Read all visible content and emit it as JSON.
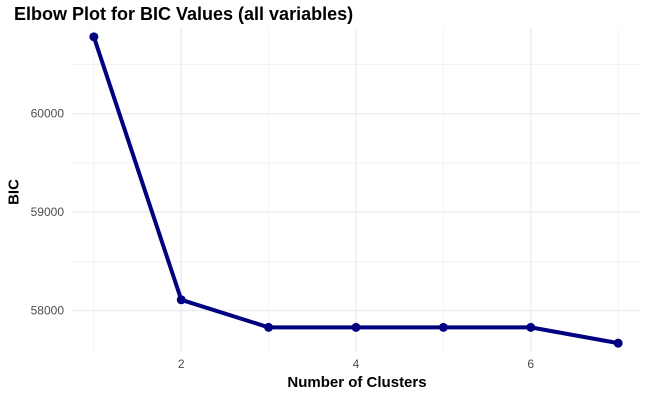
{
  "chart_data": {
    "type": "line",
    "title": "Elbow Plot for BIC Values (all variables)",
    "xlabel": "Number of Clusters",
    "ylabel": "BIC",
    "x": [
      1,
      2,
      3,
      4,
      5,
      6,
      7
    ],
    "values": [
      60780,
      58110,
      57830,
      57830,
      57830,
      57830,
      57670
    ],
    "xlim": [
      0.75,
      7.25
    ],
    "ylim": [
      57580,
      60870
    ],
    "x_ticks": [
      2,
      4,
      6
    ],
    "x_tick_labels": [
      "2",
      "4",
      "6"
    ],
    "y_ticks": [
      58000,
      59000,
      60000
    ],
    "y_tick_labels": [
      "58000",
      "59000",
      "60000"
    ],
    "grid": true,
    "line_color": "#000080",
    "grid_color": "#ebebeb"
  }
}
